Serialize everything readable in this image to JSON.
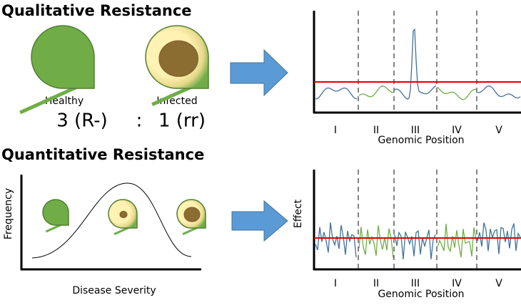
{
  "top": {
    "title": "Qualitative Resistance",
    "leaf_labels": [
      "Healthy",
      "Infected"
    ],
    "ratio": [
      "3 (R-)",
      ":",
      "1 (rr)"
    ],
    "chart": {
      "x_label": "Genomic Position",
      "segments": [
        "I",
        "II",
        "III",
        "IV",
        "V"
      ]
    }
  },
  "bottom": {
    "title": "Quantitative Resistance",
    "y_label": "Frequency",
    "x_label": "Disease Severity",
    "chart": {
      "y_label": "Effect",
      "x_label": "Genomic Position",
      "segments": [
        "I",
        "II",
        "III",
        "IV",
        "V"
      ]
    }
  }
}
